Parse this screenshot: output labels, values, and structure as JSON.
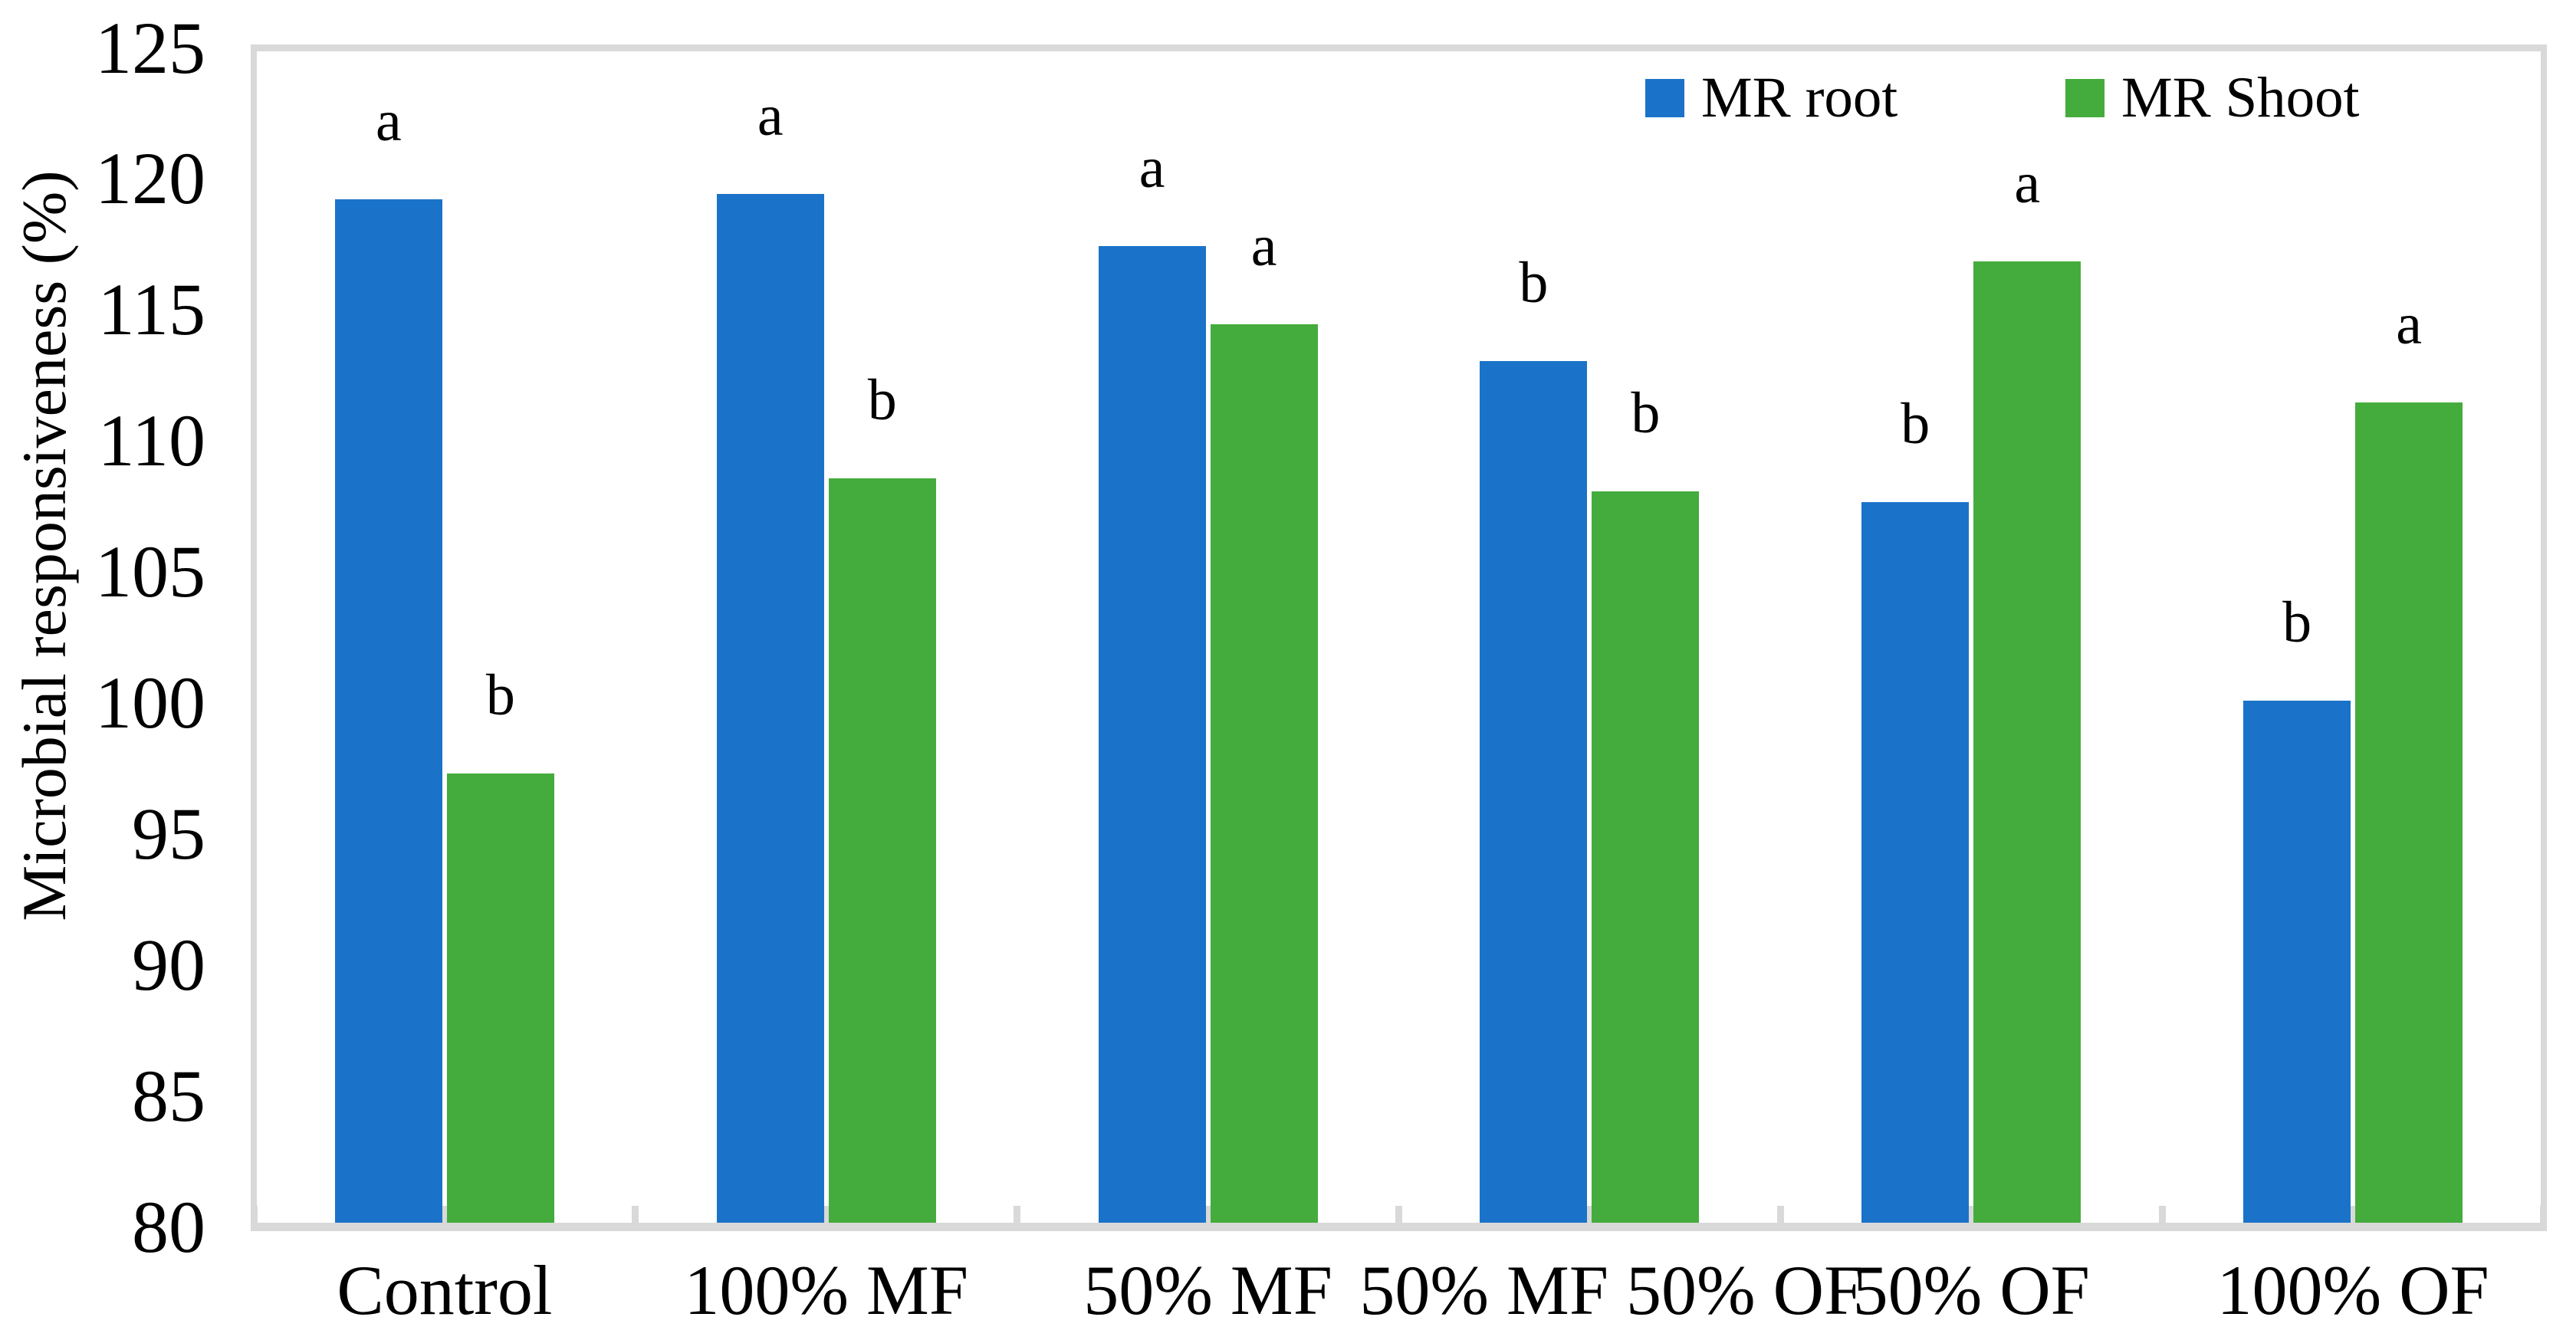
{
  "figure": {
    "y_axis_title": "Microbial responsiveness (%)"
  },
  "chart_data": {
    "type": "bar",
    "title": "",
    "xlabel": "",
    "ylabel": "Microbial responsiveness (%)",
    "ylim": [
      80,
      125
    ],
    "ytick_step": 5,
    "yticks": [
      125,
      120,
      115,
      110,
      105,
      100,
      95,
      90,
      85,
      80
    ],
    "categories": [
      "Control",
      "100% MF",
      "50% MF",
      "50% MF 50% OF",
      "50% OF",
      "100% OF"
    ],
    "series": [
      {
        "name": "MR root",
        "color": "#1A73C8",
        "values": [
          119.2,
          119.4,
          117.4,
          113.0,
          107.6,
          100.0
        ],
        "sig_letters": [
          "a",
          "a",
          "a",
          "b",
          "b",
          "b"
        ]
      },
      {
        "name": "MR Shoot",
        "color": "#44AC3C",
        "values": [
          97.2,
          108.5,
          114.4,
          108.0,
          116.8,
          111.4
        ],
        "sig_letters": [
          "b",
          "b",
          "a",
          "b",
          "a",
          "a"
        ]
      }
    ],
    "grid": false,
    "legend_position": "top-right-inside",
    "axis_color": "#D9D9D9"
  }
}
